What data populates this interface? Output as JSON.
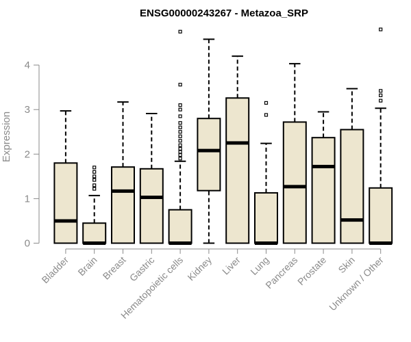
{
  "chart_data": {
    "type": "boxplot",
    "title": "ENSG00000243267 - Metazoa_SRP",
    "xlabel": "",
    "ylabel": "Expression",
    "ylim": [
      0,
      4.8
    ],
    "yticks": [
      0,
      1,
      2,
      3,
      4
    ],
    "box_fill": "#ede6cf",
    "box_stroke": "#000000",
    "axis_color": "#8a8a8a",
    "categories": [
      "Bladder",
      "Brain",
      "Breast",
      "Gastric",
      "Hematopoietic cells",
      "Kidney",
      "Liver",
      "Lung",
      "Pancreas",
      "Prostate",
      "Skin",
      "Unknown / Other"
    ],
    "boxes": [
      {
        "category": "Bladder",
        "whisker_low": 0,
        "q1": 0,
        "median": 0.5,
        "q3": 1.8,
        "whisker_high": 2.97,
        "outliers": []
      },
      {
        "category": "Brain",
        "whisker_low": 0,
        "q1": 0,
        "median": 0,
        "q3": 0.45,
        "whisker_high": 1.07,
        "outliers": [
          1.22,
          1.3,
          1.42,
          1.5,
          1.6,
          1.7
        ]
      },
      {
        "category": "Breast",
        "whisker_low": 0,
        "q1": 0,
        "median": 1.17,
        "q3": 1.71,
        "whisker_high": 3.17,
        "outliers": []
      },
      {
        "category": "Gastric",
        "whisker_low": 0,
        "q1": 0,
        "median": 1.03,
        "q3": 1.67,
        "whisker_high": 2.91,
        "outliers": []
      },
      {
        "category": "Hematopoietic cells",
        "whisker_low": 0,
        "q1": 0,
        "median": 0,
        "q3": 0.75,
        "whisker_high": 1.84,
        "outliers": [
          1.9,
          1.98,
          2.05,
          2.12,
          2.2,
          2.3,
          2.4,
          2.5,
          2.6,
          2.7,
          2.85,
          3.0,
          3.1,
          3.56,
          4.75
        ]
      },
      {
        "category": "Kidney",
        "whisker_low": 0,
        "q1": 1.18,
        "median": 2.08,
        "q3": 2.8,
        "whisker_high": 4.58,
        "outliers": []
      },
      {
        "category": "Liver",
        "whisker_low": 0,
        "q1": 0,
        "median": 2.25,
        "q3": 3.26,
        "whisker_high": 4.2,
        "outliers": []
      },
      {
        "category": "Lung",
        "whisker_low": 0,
        "q1": 0,
        "median": 0,
        "q3": 1.13,
        "whisker_high": 2.24,
        "outliers": [
          2.88,
          3.15
        ]
      },
      {
        "category": "Pancreas",
        "whisker_low": 0,
        "q1": 0,
        "median": 1.27,
        "q3": 2.72,
        "whisker_high": 4.03,
        "outliers": []
      },
      {
        "category": "Prostate",
        "whisker_low": 0,
        "q1": 0,
        "median": 1.72,
        "q3": 2.37,
        "whisker_high": 2.95,
        "outliers": []
      },
      {
        "category": "Skin",
        "whisker_low": 0,
        "q1": 0,
        "median": 0.52,
        "q3": 2.55,
        "whisker_high": 3.47,
        "outliers": []
      },
      {
        "category": "Unknown / Other",
        "whisker_low": 0,
        "q1": 0,
        "median": 0,
        "q3": 1.24,
        "whisker_high": 3.03,
        "outliers": [
          3.2,
          3.32,
          3.42,
          4.8
        ]
      }
    ]
  }
}
